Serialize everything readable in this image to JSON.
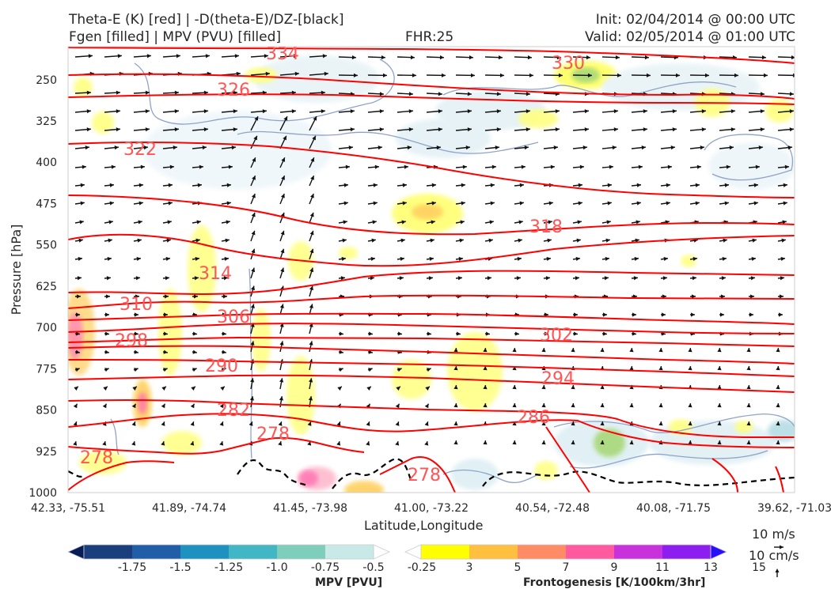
{
  "titles": {
    "left_line1": "Theta-E (K) [red] | -D(theta-E)/DZ-[black]",
    "left_line2": "Fgen [filled] | MPV (PVU) [filled]",
    "center_line2": "FHR:25",
    "right_line1": "Init: 02/04/2014 @ 00:00 UTC",
    "right_line2": "Valid: 02/05/2014 @ 01:00 UTC"
  },
  "chart_data": {
    "type": "cross-section",
    "xlabel": "Latitude,Longitude",
    "ylabel": "Pressure [hPa]",
    "ylim": [
      1000,
      190
    ],
    "y_ticks": [
      "250",
      "325",
      "400",
      "475",
      "550",
      "625",
      "700",
      "775",
      "850",
      "925",
      "1000"
    ],
    "x_ticks": [
      "42.33, -75.51",
      "41.89, -74.74",
      "41.45, -73.98",
      "41.00, -73.22",
      "40.54, -72.48",
      "40.08, -71.75",
      "39.62, -71.03"
    ],
    "theta_e_contours": {
      "color": "#ff0000",
      "label_color": "#ff5555",
      "labeled_values": [
        "334",
        "330",
        "326",
        "322",
        "318",
        "314",
        "310",
        "306",
        "302",
        "298",
        "294",
        "290",
        "286",
        "282",
        "278",
        "278",
        "278"
      ]
    },
    "wind_reference": {
      "u_label": "10 m/s",
      "w_label": "10 cm/s"
    },
    "colorbars": [
      {
        "title": "MPV [PVU]",
        "tick_labels": [
          "-1.75",
          "-1.5",
          "-1.25",
          "-1.0",
          "-0.75",
          "-0.5",
          "-0.25"
        ],
        "colors": [
          "#081d58",
          "#1b3f7d",
          "#225ea8",
          "#1d91c0",
          "#41b6c4",
          "#7fcdbb",
          "#c7e9e8",
          "#ffffff"
        ]
      },
      {
        "title": "Frontogenesis [K/100km/3hr]",
        "tick_labels": [
          "3",
          "5",
          "7",
          "9",
          "11",
          "13",
          "15"
        ],
        "colors": [
          "#ffffff",
          "#ffff00",
          "#ffc040",
          "#ff8c64",
          "#ff5aa0",
          "#c832dc",
          "#8c1ef0",
          "#2810ff"
        ]
      }
    ]
  }
}
